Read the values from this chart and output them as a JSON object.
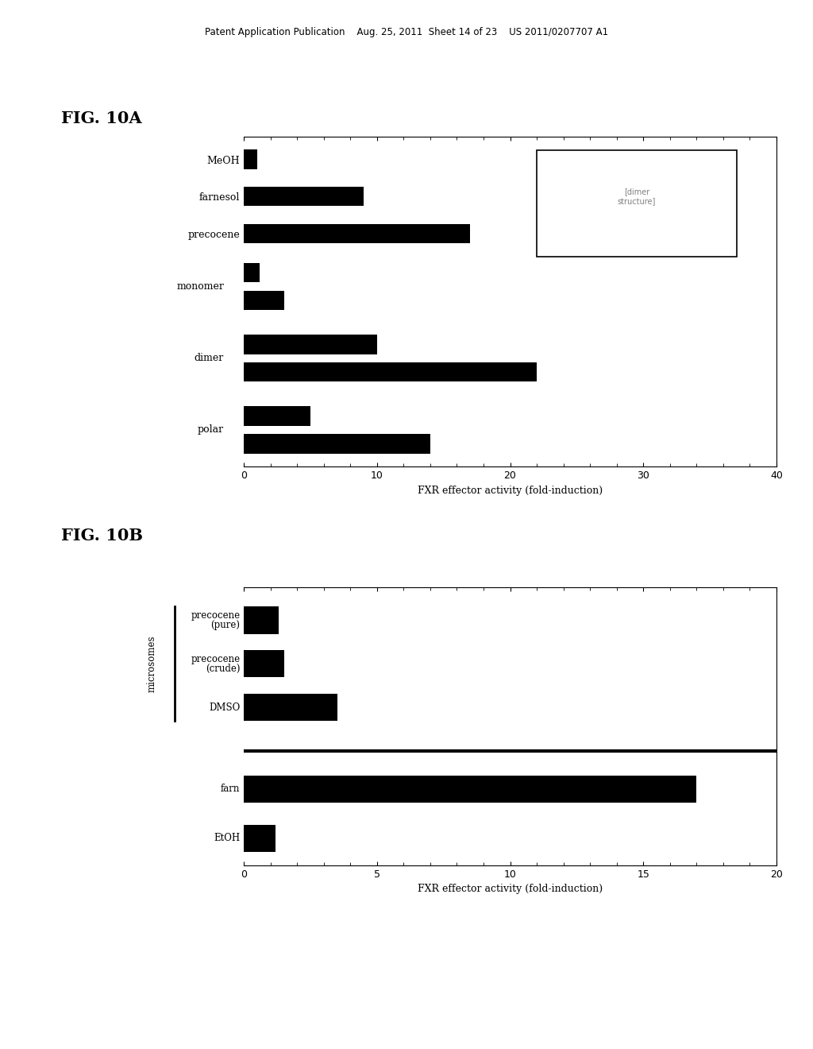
{
  "fig10a": {
    "values_single": [
      1.0,
      9.0,
      17.0
    ],
    "labels_single": [
      "MeOH",
      "farnesol",
      "precocene"
    ],
    "groups": [
      {
        "label": "monomer",
        "bars": [
          1.2,
          3.0
        ]
      },
      {
        "label": "dimer",
        "bars": [
          10.0,
          22.0
        ]
      },
      {
        "label": "polar",
        "bars": [
          5.0,
          14.0
        ]
      }
    ],
    "xlim": [
      0,
      40
    ],
    "xticks": [
      0,
      10,
      20,
      30,
      40
    ],
    "xlabel": "FXR effector activity (fold-induction)",
    "fig_label": "FIG. 10A"
  },
  "fig10b": {
    "labels": [
      "precocene\n(pure)",
      "precocene\n(crude)",
      "DMSO",
      "farn",
      "EtOH"
    ],
    "values": [
      1.3,
      1.5,
      3.5,
      17.0,
      1.2
    ],
    "xlim": [
      0,
      20
    ],
    "xticks": [
      0,
      5,
      10,
      15,
      20
    ],
    "xlabel": "FXR effector activity (fold-induction)",
    "fig_label": "FIG. 10B",
    "microsomes_group": [
      0,
      1,
      2
    ],
    "ylabel": "microsomes"
  },
  "header_text": "Patent Application Publication    Aug. 25, 2011  Sheet 14 of 23    US 2011/0207707 A1",
  "bg_color": "#ffffff",
  "text_color": "#000000",
  "bar_color": "#000000"
}
